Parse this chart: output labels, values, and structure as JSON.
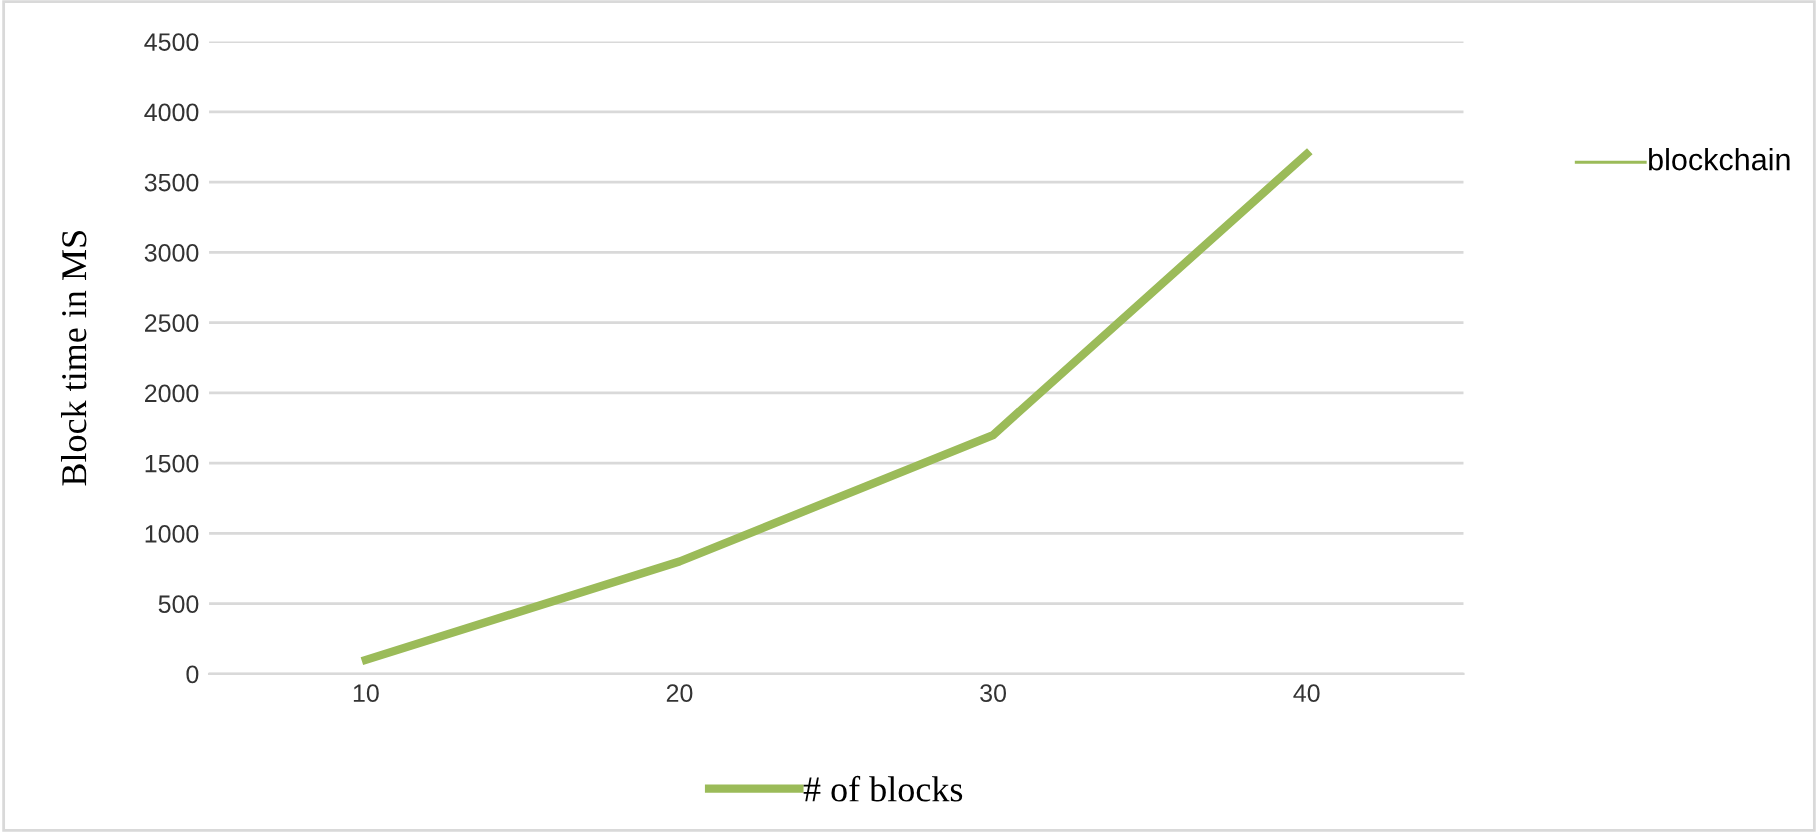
{
  "chart_data": {
    "type": "line",
    "ylabel": "Block time in MS",
    "categories": [
      "10",
      "20",
      "30",
      "40"
    ],
    "series": [
      {
        "name": "# of blocks",
        "color": "#9bbb59",
        "values": [
          100,
          800,
          1700,
          3700
        ]
      }
    ],
    "annotations": [
      "blockchain"
    ],
    "ylim": [
      0,
      4500
    ],
    "yticks": [
      0,
      500,
      1000,
      1500,
      2000,
      2500,
      3000,
      3500,
      4000,
      4500
    ],
    "grid": "y",
    "legend": "bottom",
    "marker": "none",
    "line_style": "solid"
  }
}
